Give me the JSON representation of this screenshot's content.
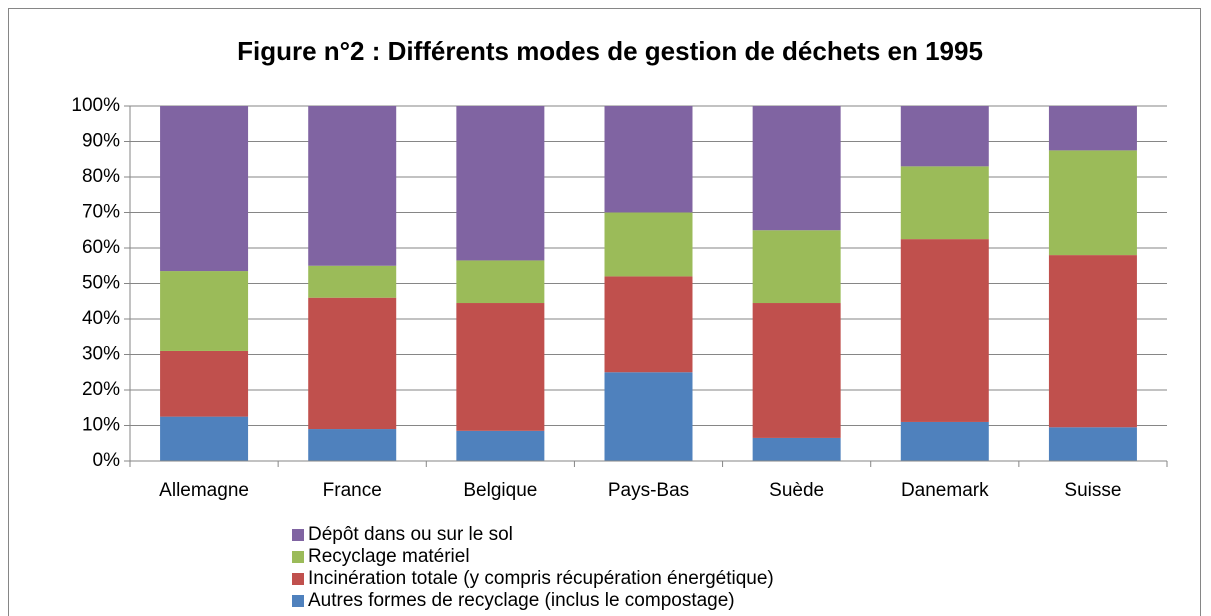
{
  "chart_data": {
    "type": "stacked_bar",
    "title": "Figure n°2 : Différents modes de gestion  de déchets en 1995",
    "categories": [
      "Allemagne",
      "France",
      "Belgique",
      "Pays-Bas",
      "Suède",
      "Danemark",
      "Suisse"
    ],
    "series": [
      {
        "name": "Autres formes de recyclage (inclus le compostage)",
        "color": "#4f81bd",
        "values": [
          12.5,
          9,
          8.5,
          25,
          6.5,
          11,
          9.5
        ]
      },
      {
        "name": "Incinération totale (y compris récupération énergétique)",
        "color": "#c0504d",
        "values": [
          18.5,
          37,
          36,
          27,
          38,
          51.5,
          48.5
        ]
      },
      {
        "name": "Recyclage matériel",
        "color": "#9bbb59",
        "values": [
          22.5,
          9,
          12,
          18,
          20.5,
          20.5,
          29.5
        ]
      },
      {
        "name": "Dépôt dans ou sur le sol",
        "color": "#8064a2",
        "values": [
          46.5,
          45,
          43.5,
          30,
          35,
          17,
          12.5
        ]
      }
    ],
    "ylim": [
      0,
      100
    ],
    "yticks": [
      {
        "value": 0,
        "label": "0%"
      },
      {
        "value": 10,
        "label": "10%"
      },
      {
        "value": 20,
        "label": "20%"
      },
      {
        "value": 30,
        "label": "30%"
      },
      {
        "value": 40,
        "label": "40%"
      },
      {
        "value": 50,
        "label": "50%"
      },
      {
        "value": 60,
        "label": "60%"
      },
      {
        "value": 70,
        "label": "70%"
      },
      {
        "value": 80,
        "label": "80%"
      },
      {
        "value": 90,
        "label": "90%"
      },
      {
        "value": 100,
        "label": "100%"
      }
    ],
    "grid": true
  }
}
